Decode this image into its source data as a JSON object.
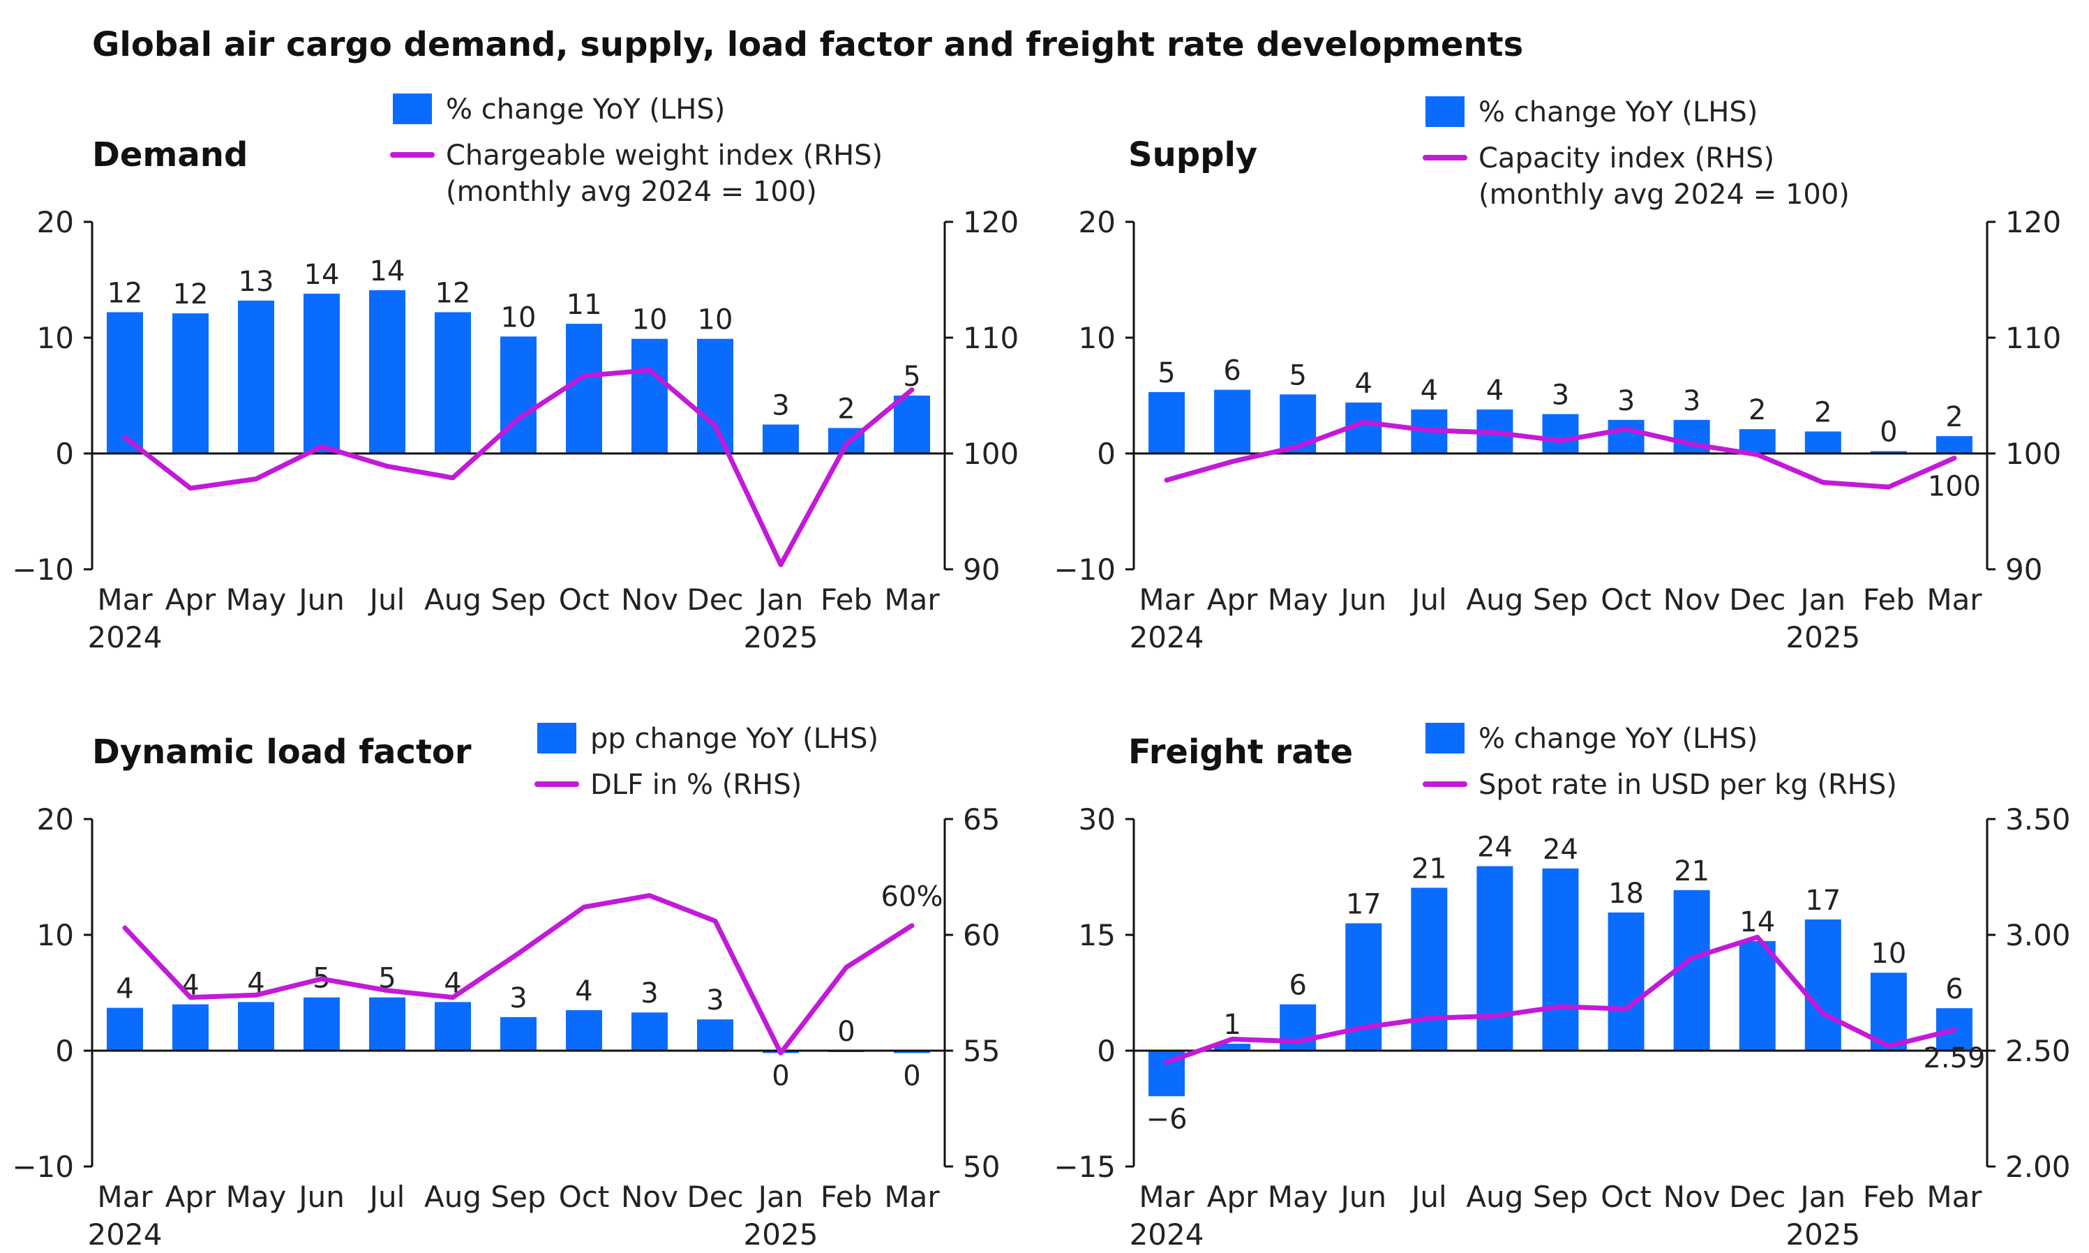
{
  "title": "Global air cargo demand, supply, load factor and freight rate developments",
  "colors": {
    "bar": "#0a6cff",
    "line": "#c21ad8",
    "axis": "#111111"
  },
  "chart_data": [
    {
      "type": "bar",
      "panel_title": "Demand",
      "categories": [
        "Mar",
        "Apr",
        "May",
        "Jun",
        "Jul",
        "Aug",
        "Sep",
        "Oct",
        "Nov",
        "Dec",
        "Jan",
        "Feb",
        "Mar"
      ],
      "year_labels": [
        {
          "index": 0,
          "label": "2024"
        },
        {
          "index": 10,
          "label": "2025"
        }
      ],
      "legend": [
        "% change YoY (LHS)",
        "Chargeable weight index (RHS)",
        "(monthly avg 2024 = 100)"
      ],
      "left_axis": {
        "ylim": [
          -10,
          20
        ],
        "ticks": [
          "20",
          "10",
          "0",
          "−10"
        ],
        "tick_values": [
          20,
          10,
          0,
          -10
        ]
      },
      "right_axis": {
        "ylim": [
          90,
          120
        ],
        "ticks": [
          "120",
          "110",
          "100",
          "90"
        ],
        "tick_values": [
          120,
          110,
          100,
          90
        ]
      },
      "series": [
        {
          "name": "% change YoY (LHS)",
          "kind": "bar",
          "axis": "left",
          "values": [
            12.2,
            12.1,
            13.2,
            13.8,
            14.1,
            12.2,
            10.1,
            11.2,
            9.9,
            9.9,
            2.5,
            2.2,
            5.0
          ],
          "labels": [
            "12",
            "12",
            "13",
            "14",
            "14",
            "12",
            "10",
            "11",
            "10",
            "10",
            "3",
            "2",
            "5"
          ]
        },
        {
          "name": "Chargeable weight index (RHS)",
          "kind": "line",
          "axis": "right",
          "values": [
            101.4,
            97.0,
            97.8,
            100.6,
            98.9,
            97.9,
            103.0,
            106.7,
            107.2,
            102.4,
            90.4,
            100.8,
            105.5
          ],
          "labels": []
        }
      ]
    },
    {
      "type": "bar",
      "panel_title": "Supply",
      "categories": [
        "Mar",
        "Apr",
        "May",
        "Jun",
        "Jul",
        "Aug",
        "Sep",
        "Oct",
        "Nov",
        "Dec",
        "Jan",
        "Feb",
        "Mar"
      ],
      "year_labels": [
        {
          "index": 0,
          "label": "2024"
        },
        {
          "index": 10,
          "label": "2025"
        }
      ],
      "legend": [
        "% change YoY (LHS)",
        "Capacity index (RHS)",
        "(monthly avg 2024 = 100)"
      ],
      "left_axis": {
        "ylim": [
          -10,
          20
        ],
        "ticks": [
          "20",
          "10",
          "0",
          "−10"
        ],
        "tick_values": [
          20,
          10,
          0,
          -10
        ]
      },
      "right_axis": {
        "ylim": [
          90,
          120
        ],
        "ticks": [
          "120",
          "110",
          "100",
          "90"
        ],
        "tick_values": [
          120,
          110,
          100,
          90
        ]
      },
      "series": [
        {
          "name": "% change YoY (LHS)",
          "kind": "bar",
          "axis": "left",
          "values": [
            5.3,
            5.5,
            5.1,
            4.4,
            3.8,
            3.8,
            3.4,
            2.9,
            2.9,
            2.1,
            1.9,
            0.2,
            1.5
          ],
          "labels": [
            "5",
            "6",
            "5",
            "4",
            "4",
            "4",
            "3",
            "3",
            "3",
            "2",
            "2",
            "0",
            "2"
          ]
        },
        {
          "name": "Capacity index (RHS)",
          "kind": "line",
          "axis": "right",
          "values": [
            97.7,
            99.3,
            100.6,
            102.7,
            102.0,
            101.8,
            101.1,
            102.1,
            100.8,
            99.9,
            97.5,
            97.1,
            99.6
          ],
          "labels": [
            {
              "index": 12,
              "text": "100",
              "pos": "below"
            }
          ]
        }
      ]
    },
    {
      "type": "bar",
      "panel_title": "Dynamic load factor",
      "categories": [
        "Mar",
        "Apr",
        "May",
        "Jun",
        "Jul",
        "Aug",
        "Sep",
        "Oct",
        "Nov",
        "Dec",
        "Jan",
        "Feb",
        "Mar"
      ],
      "year_labels": [
        {
          "index": 0,
          "label": "2024"
        },
        {
          "index": 10,
          "label": "2025"
        }
      ],
      "legend": [
        "pp change YoY (LHS)",
        "DLF in % (RHS)"
      ],
      "left_axis": {
        "ylim": [
          -10,
          20
        ],
        "ticks": [
          "20",
          "10",
          "0",
          "−10"
        ],
        "tick_values": [
          20,
          10,
          0,
          -10
        ]
      },
      "right_axis": {
        "ylim": [
          50,
          65
        ],
        "ticks": [
          "65",
          "60",
          "55",
          "50"
        ],
        "tick_values": [
          65,
          60,
          55,
          50
        ]
      },
      "series": [
        {
          "name": "pp change YoY (LHS)",
          "kind": "bar",
          "axis": "left",
          "values": [
            3.7,
            4.0,
            4.2,
            4.6,
            4.6,
            4.2,
            2.9,
            3.5,
            3.3,
            2.7,
            -0.2,
            0.0,
            -0.2
          ],
          "labels": [
            "4",
            "4",
            "4",
            "5",
            "5",
            "4",
            "3",
            "4",
            "3",
            "3",
            "0",
            "0",
            "0"
          ]
        },
        {
          "name": "DLF in % (RHS)",
          "kind": "line",
          "axis": "right",
          "values": [
            60.3,
            57.3,
            57.4,
            58.1,
            57.6,
            57.3,
            59.2,
            61.2,
            61.7,
            60.6,
            54.9,
            58.6,
            60.4
          ],
          "labels": [
            {
              "index": 12,
              "text": "60%",
              "pos": "above"
            }
          ]
        }
      ]
    },
    {
      "type": "bar",
      "panel_title": "Freight rate",
      "categories": [
        "Mar",
        "Apr",
        "May",
        "Jun",
        "Jul",
        "Aug",
        "Sep",
        "Oct",
        "Nov",
        "Dec",
        "Jan",
        "Feb",
        "Mar"
      ],
      "year_labels": [
        {
          "index": 0,
          "label": "2024"
        },
        {
          "index": 10,
          "label": "2025"
        }
      ],
      "legend": [
        "% change YoY (LHS)",
        "Spot rate in USD per kg (RHS)"
      ],
      "left_axis": {
        "ylim": [
          -15,
          30
        ],
        "ticks": [
          "30",
          "15",
          "0",
          "−15"
        ],
        "tick_values": [
          30,
          15,
          0,
          -15
        ]
      },
      "right_axis": {
        "ylim": [
          2.0,
          3.5
        ],
        "ticks": [
          "3.50",
          "3.00",
          "2.50",
          "2.00"
        ],
        "tick_values": [
          3.5,
          3.0,
          2.5,
          2.0
        ]
      },
      "series": [
        {
          "name": "% change YoY (LHS)",
          "kind": "bar",
          "axis": "left",
          "values": [
            -5.9,
            0.9,
            6.0,
            16.5,
            21.1,
            23.9,
            23.6,
            17.9,
            20.8,
            14.2,
            17.0,
            10.1,
            5.5
          ],
          "labels": [
            "−6",
            "1",
            "6",
            "17",
            "21",
            "24",
            "24",
            "18",
            "21",
            "14",
            "17",
            "10",
            "6"
          ]
        },
        {
          "name": "Spot rate in USD per kg (RHS)",
          "kind": "line",
          "axis": "right",
          "values": [
            2.45,
            2.55,
            2.54,
            2.6,
            2.64,
            2.65,
            2.69,
            2.68,
            2.9,
            2.99,
            2.66,
            2.52,
            2.59
          ],
          "labels": [
            {
              "index": 12,
              "text": "2.59",
              "pos": "below"
            }
          ]
        }
      ]
    }
  ]
}
